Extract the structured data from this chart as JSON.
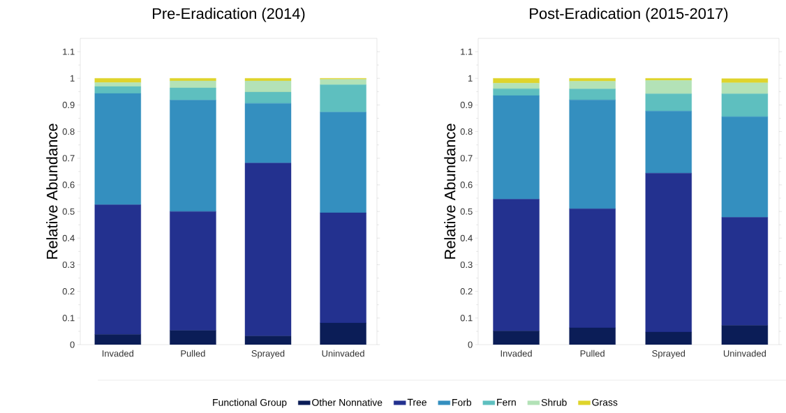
{
  "chart_data": [
    {
      "type": "bar",
      "stacked": true,
      "title": "Pre-Eradication (2014)",
      "ylabel": "Relative Abundance",
      "categories": [
        "Invaded",
        "Pulled",
        "Sprayed",
        "Uninvaded"
      ],
      "ylim": [
        0,
        1.15
      ],
      "yticks": [
        0,
        0.1,
        0.2,
        0.3,
        0.4,
        0.5,
        0.6,
        0.7,
        0.8,
        0.9,
        1,
        1.1
      ],
      "grid": false,
      "legend": false,
      "series": [
        {
          "color": "#0b1d57",
          "values": [
            0.038,
            0.053,
            0.032,
            0.081
          ]
        },
        {
          "color": "#23318f",
          "values": [
            0.487,
            0.447,
            0.65,
            0.414
          ]
        },
        {
          "color": "#348fbf",
          "values": [
            0.418,
            0.418,
            0.224,
            0.378
          ]
        },
        {
          "color": "#5ebfbf",
          "values": [
            0.026,
            0.046,
            0.042,
            0.103
          ]
        },
        {
          "color": "#b3e2b7",
          "values": [
            0.015,
            0.026,
            0.042,
            0.02
          ]
        },
        {
          "color": "#dfd42b",
          "values": [
            0.016,
            0.01,
            0.01,
            0.004
          ]
        }
      ]
    },
    {
      "type": "bar",
      "stacked": true,
      "title": "Post-Eradication (2015-2017)",
      "ylabel": "Relative Abundance",
      "categories": [
        "Invaded",
        "Pulled",
        "Sprayed",
        "Uninvaded"
      ],
      "ylim": [
        0,
        1.15
      ],
      "yticks": [
        0,
        0.1,
        0.2,
        0.3,
        0.4,
        0.5,
        0.6,
        0.7,
        0.8,
        0.9,
        1,
        1.1
      ],
      "grid": false,
      "legend": "bottom",
      "legend_title": "Functional Group",
      "series": [
        {
          "name": "Other Nonnative",
          "color": "#0b1d57",
          "values": [
            0.051,
            0.063,
            0.047,
            0.072
          ]
        },
        {
          "name": "Tree",
          "color": "#23318f",
          "values": [
            0.495,
            0.447,
            0.597,
            0.406
          ]
        },
        {
          "name": "Forb",
          "color": "#348fbf",
          "values": [
            0.389,
            0.409,
            0.233,
            0.378
          ]
        },
        {
          "name": "Fern",
          "color": "#5ebfbf",
          "values": [
            0.026,
            0.041,
            0.065,
            0.086
          ]
        },
        {
          "name": "Shrub",
          "color": "#b3e2b7",
          "values": [
            0.021,
            0.029,
            0.05,
            0.041
          ]
        },
        {
          "name": "Grass",
          "color": "#dfd42b",
          "values": [
            0.018,
            0.011,
            0.008,
            0.016
          ]
        }
      ]
    }
  ]
}
